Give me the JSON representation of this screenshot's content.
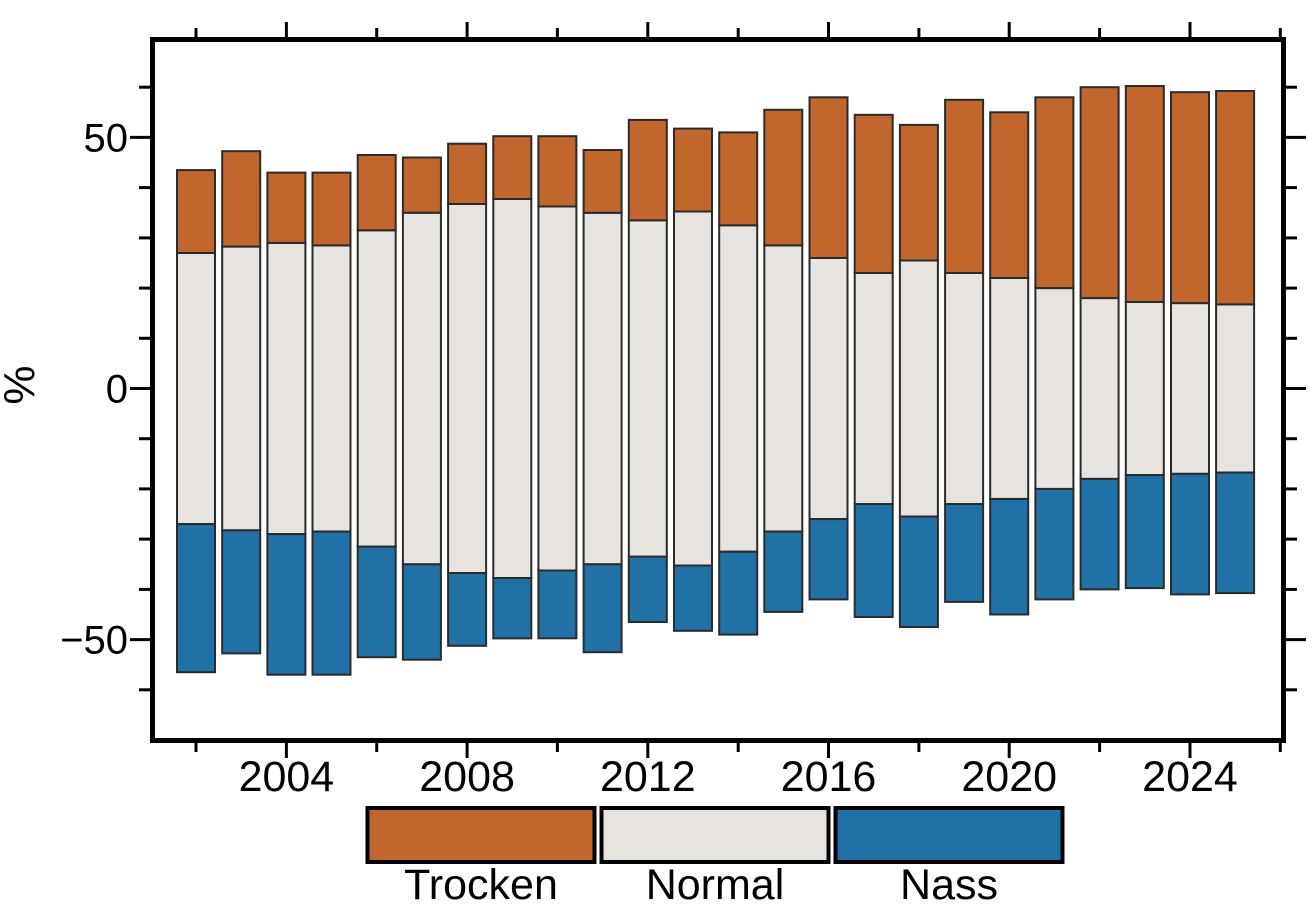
{
  "chart_data": {
    "type": "bar",
    "stacking": "diverging-centered-normal",
    "title": "",
    "ylabel": "%",
    "xlabel": "",
    "ylim": [
      -70,
      70
    ],
    "grid": false,
    "legend_position": "bottom-center",
    "x": [
      2002,
      2003,
      2004,
      2005,
      2006,
      2007,
      2008,
      2009,
      2010,
      2011,
      2012,
      2013,
      2014,
      2015,
      2016,
      2017,
      2018,
      2019,
      2020,
      2021,
      2022,
      2023,
      2024,
      2025
    ],
    "series": [
      {
        "name": "Trocken",
        "color": "#C1662C",
        "values": [
          16.5,
          19,
          14,
          14.5,
          15,
          11,
          12,
          12.5,
          14,
          12.5,
          20,
          16.5,
          18.5,
          27,
          32,
          31.5,
          27,
          34.5,
          33,
          38,
          42,
          43,
          42,
          42.5
        ]
      },
      {
        "name": "Normal",
        "color": "#E7E4E0",
        "values": [
          54,
          56.5,
          58,
          57,
          63,
          70,
          73.5,
          75.5,
          72.5,
          70,
          67,
          70.5,
          65,
          57,
          52,
          46,
          51,
          46,
          44,
          40,
          36,
          34.5,
          34,
          33.5
        ]
      },
      {
        "name": "Nass",
        "color": "#2071A6",
        "values": [
          29.5,
          24.5,
          28,
          28.5,
          22,
          19,
          14.5,
          12,
          13.5,
          17.5,
          13,
          13,
          16.5,
          16,
          16,
          22.5,
          22,
          19.5,
          23,
          22,
          22,
          22.5,
          24,
          24
        ]
      }
    ],
    "yticks_major": [
      50,
      0,
      -50
    ],
    "ytick_labels": [
      "50",
      "0",
      "−50"
    ],
    "yticks_minor": [
      60,
      40,
      30,
      20,
      10,
      -10,
      -20,
      -30,
      -40,
      -60
    ],
    "xticks_minor_years": [
      2002,
      2006,
      2010,
      2014,
      2018,
      2022,
      2026
    ],
    "xticks_major_years": [
      2004,
      2008,
      2012,
      2016,
      2020,
      2024
    ],
    "xtick_labels": [
      "2004",
      "2008",
      "2012",
      "2016",
      "2020",
      "2024"
    ],
    "bar_outline_color": "#2b2b2b",
    "frame_color": "#000000"
  },
  "legend": {
    "items": [
      {
        "label": "Trocken",
        "color": "#C1662C"
      },
      {
        "label": "Normal",
        "color": "#E7E4E0"
      },
      {
        "label": "Nass",
        "color": "#2071A6"
      }
    ]
  }
}
